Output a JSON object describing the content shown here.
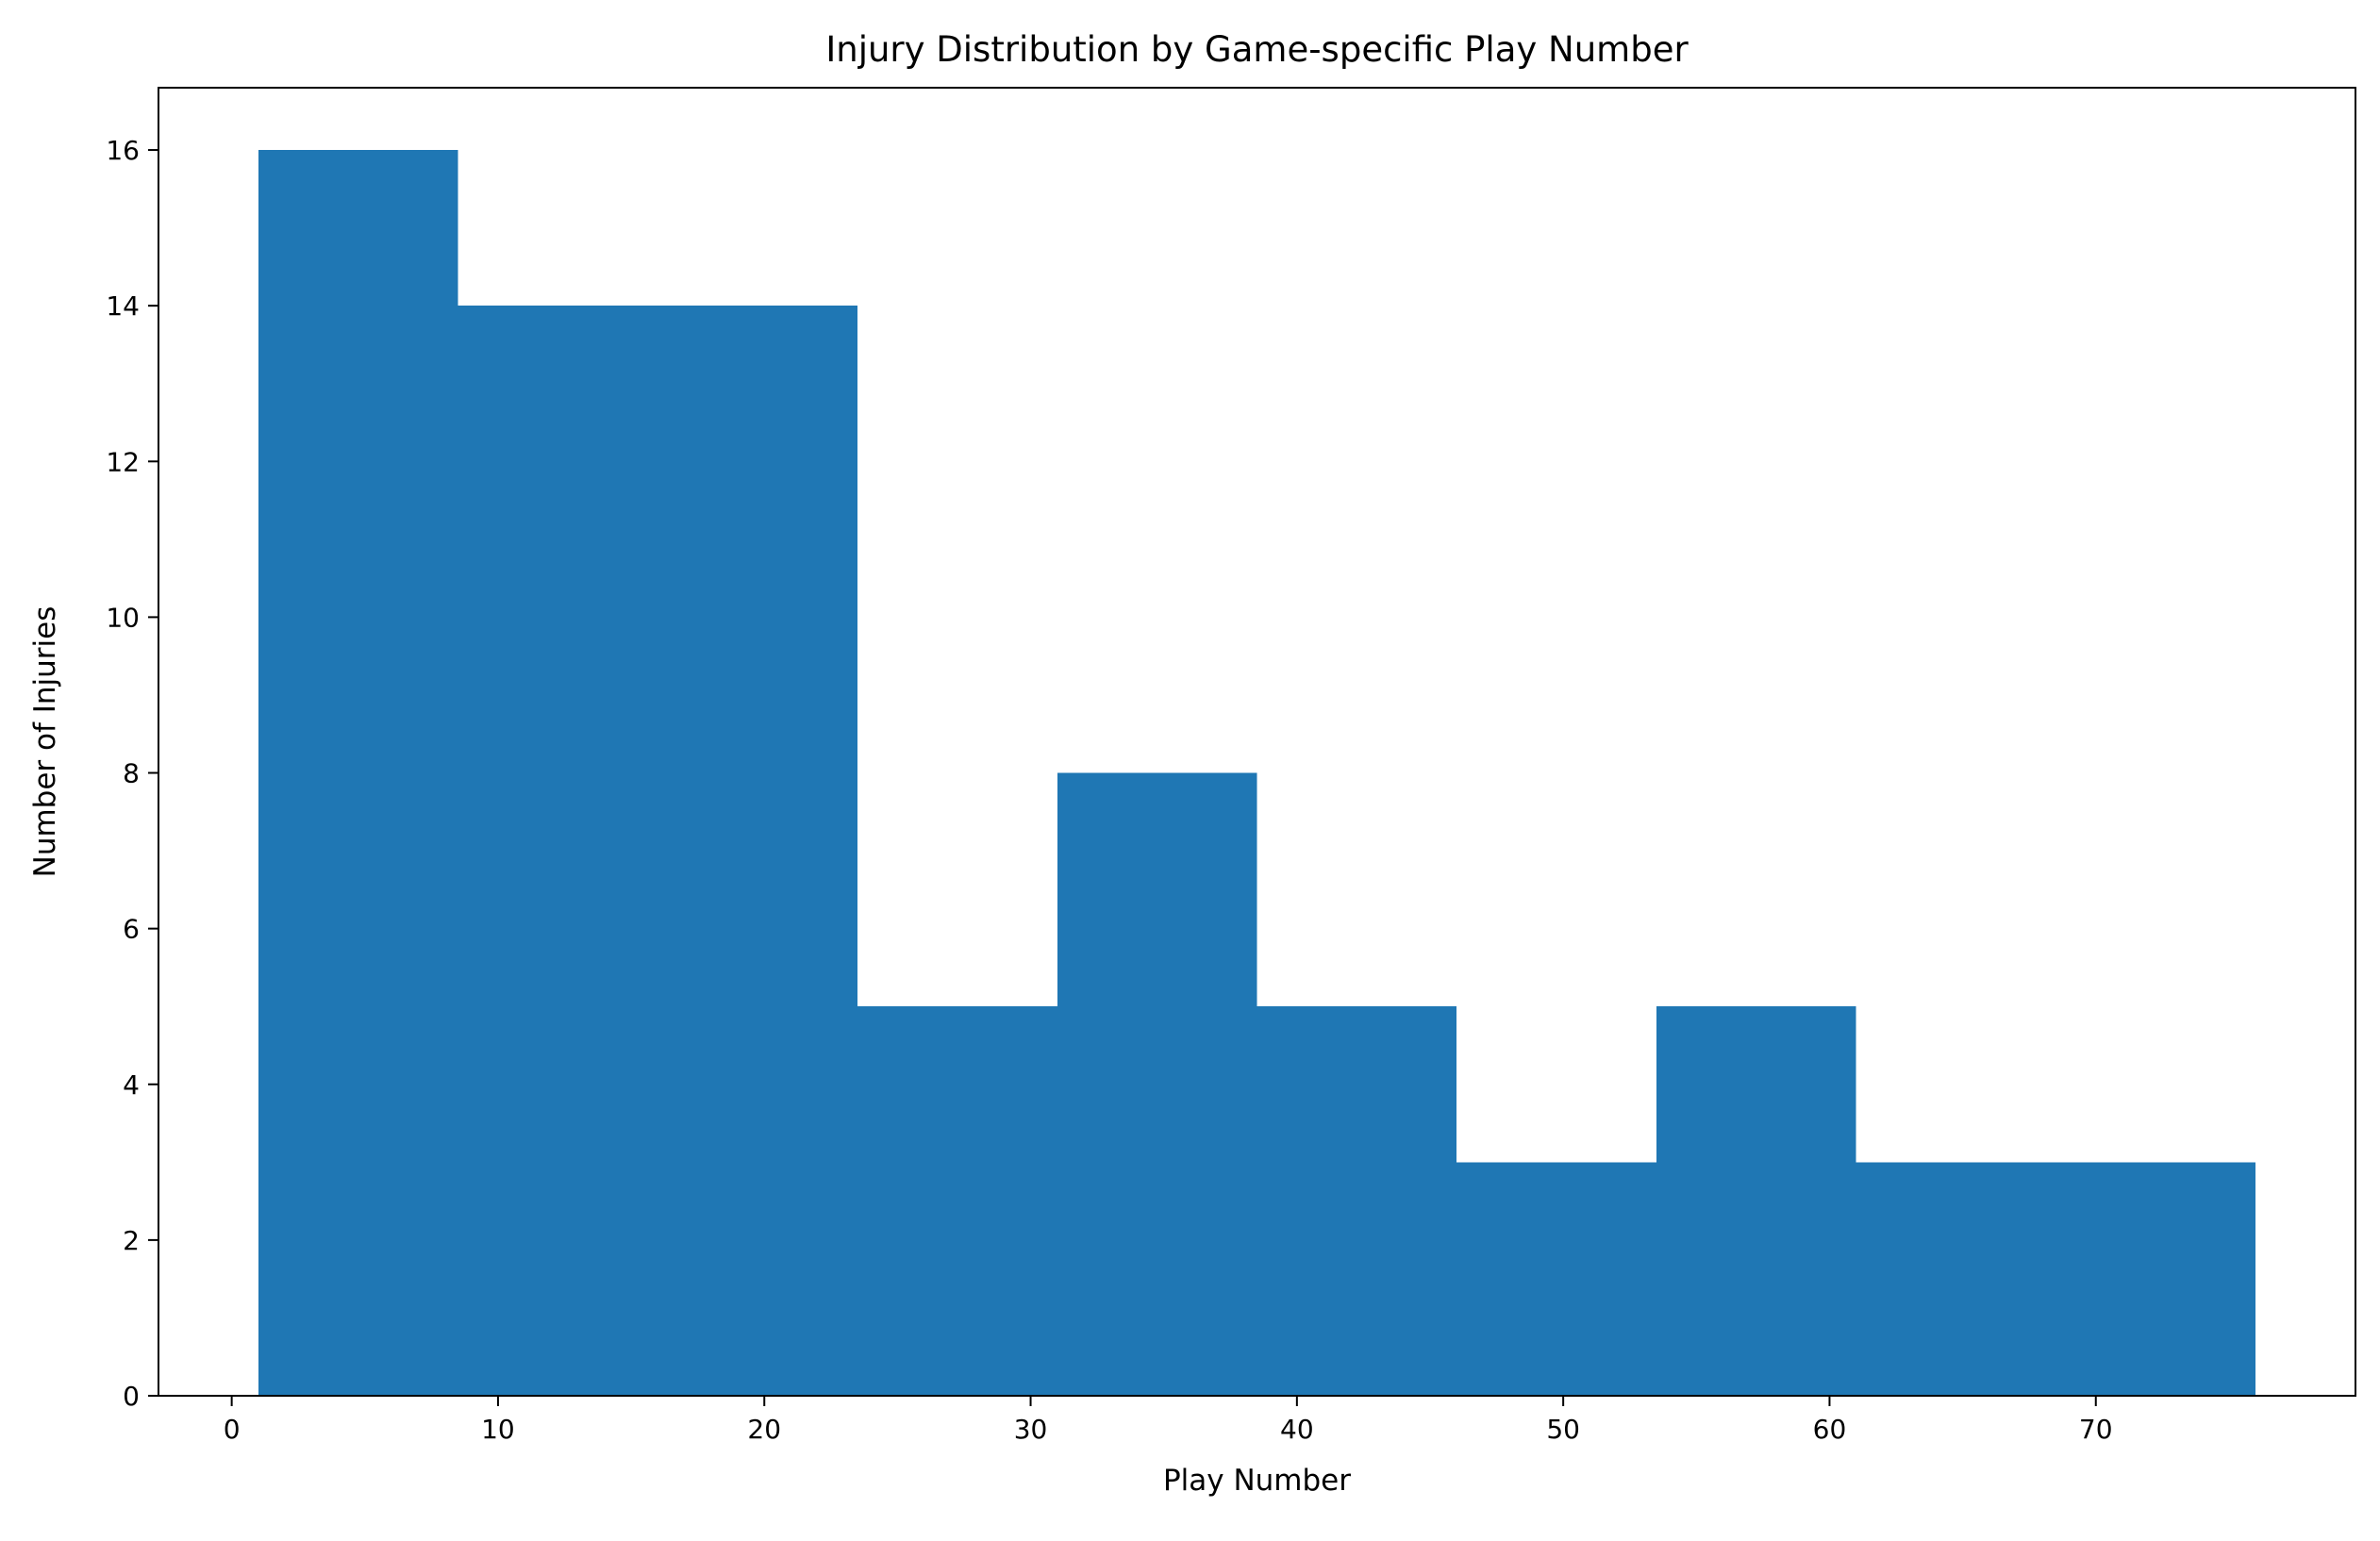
{
  "chart_data": {
    "type": "bar",
    "title": "Injury Distribution by Game-specific Play Number",
    "xlabel": "Play Number",
    "ylabel": "Number of Injuries",
    "xlim": [
      -2.75,
      79.75
    ],
    "ylim": [
      0,
      16.8
    ],
    "xticks": [
      0,
      10,
      20,
      30,
      40,
      50,
      60,
      70
    ],
    "yticks": [
      0,
      2,
      4,
      6,
      8,
      10,
      12,
      14,
      16
    ],
    "grid": false,
    "legend": "none",
    "bar_color": "#1f77b4",
    "bins": [
      {
        "x0": 1.0,
        "x1": 8.5,
        "value": 16
      },
      {
        "x0": 8.5,
        "x1": 16.0,
        "value": 14
      },
      {
        "x0": 16.0,
        "x1": 23.5,
        "value": 14
      },
      {
        "x0": 23.5,
        "x1": 31.0,
        "value": 5
      },
      {
        "x0": 31.0,
        "x1": 38.5,
        "value": 8
      },
      {
        "x0": 38.5,
        "x1": 46.0,
        "value": 5
      },
      {
        "x0": 46.0,
        "x1": 53.5,
        "value": 3
      },
      {
        "x0": 53.5,
        "x1": 61.0,
        "value": 5
      },
      {
        "x0": 61.0,
        "x1": 68.5,
        "value": 3
      },
      {
        "x0": 68.5,
        "x1": 76.0,
        "value": 3
      }
    ]
  }
}
